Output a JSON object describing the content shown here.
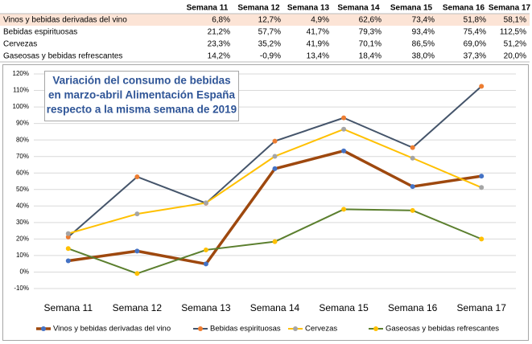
{
  "table": {
    "columns": [
      "Semana 11",
      "Semana 12",
      "Semana 13",
      "Semana 14",
      "Semana 15",
      "Semana 16",
      "Semana 17"
    ],
    "rows": [
      {
        "label": "Vinos y bebidas derivadas del vino",
        "cells": [
          "6,8%",
          "12,7%",
          "4,9%",
          "62,6%",
          "73,4%",
          "51,8%",
          "58,1%"
        ]
      },
      {
        "label": "Bebidas espirituosas",
        "cells": [
          "21,2%",
          "57,7%",
          "41,7%",
          "79,3%",
          "93,4%",
          "75,4%",
          "112,5%"
        ]
      },
      {
        "label": "Cervezas",
        "cells": [
          "23,3%",
          "35,2%",
          "41,9%",
          "70,1%",
          "86,5%",
          "69,0%",
          "51,2%"
        ]
      },
      {
        "label": "Gaseosas y bebidas refrescantes",
        "cells": [
          "14,2%",
          "-0,9%",
          "13,4%",
          "18,4%",
          "38,0%",
          "37,3%",
          "20,0%"
        ]
      }
    ]
  },
  "chart_data": {
    "type": "line",
    "title": [
      "Variación del consumo de bebidas",
      "en marzo-abril Alimentación España",
      "respecto a la misma semana de 2019"
    ],
    "categories": [
      "Semana 11",
      "Semana 12",
      "Semana 13",
      "Semana 14",
      "Semana 15",
      "Semana 16",
      "Semana 17"
    ],
    "series": [
      {
        "name": "Vinos y bebidas derivadas del vino",
        "color": "#9e480e",
        "marker_color": "#4472c4",
        "values": [
          6.8,
          12.7,
          4.9,
          62.6,
          73.4,
          51.8,
          58.1
        ]
      },
      {
        "name": "Bebidas espirituosas",
        "color": "#44546a",
        "marker_color": "#ed7d31",
        "values": [
          21.2,
          57.7,
          41.7,
          79.3,
          93.4,
          75.4,
          112.5
        ]
      },
      {
        "name": "Cervezas",
        "color": "#ffc000",
        "marker_color": "#a5a5a5",
        "values": [
          23.3,
          35.2,
          41.9,
          70.1,
          86.5,
          69.0,
          51.2
        ]
      },
      {
        "name": "Gaseosas y bebidas refrescantes",
        "color": "#5b7f2e",
        "marker_color": "#ffc000",
        "values": [
          14.2,
          -0.9,
          13.4,
          18.4,
          38.0,
          37.3,
          20.0
        ]
      }
    ],
    "ylim": [
      -10,
      120
    ],
    "yticks": [
      {
        "value": -10,
        "label": "-10%"
      },
      {
        "value": 0,
        "label": "0%"
      },
      {
        "value": 10,
        "label": "10%"
      },
      {
        "value": 20,
        "label": "20%"
      },
      {
        "value": 30,
        "label": "30%"
      },
      {
        "value": 40,
        "label": "40%"
      },
      {
        "value": 50,
        "label": "50%"
      },
      {
        "value": 60,
        "label": "60%"
      },
      {
        "value": 70,
        "label": "70%"
      },
      {
        "value": 80,
        "label": "80%"
      },
      {
        "value": 90,
        "label": "90%"
      },
      {
        "value": 100,
        "label": "100%"
      },
      {
        "value": 110,
        "label": "110%"
      },
      {
        "value": 120,
        "label": "120%"
      }
    ],
    "grid": true,
    "legend": "bottom"
  }
}
